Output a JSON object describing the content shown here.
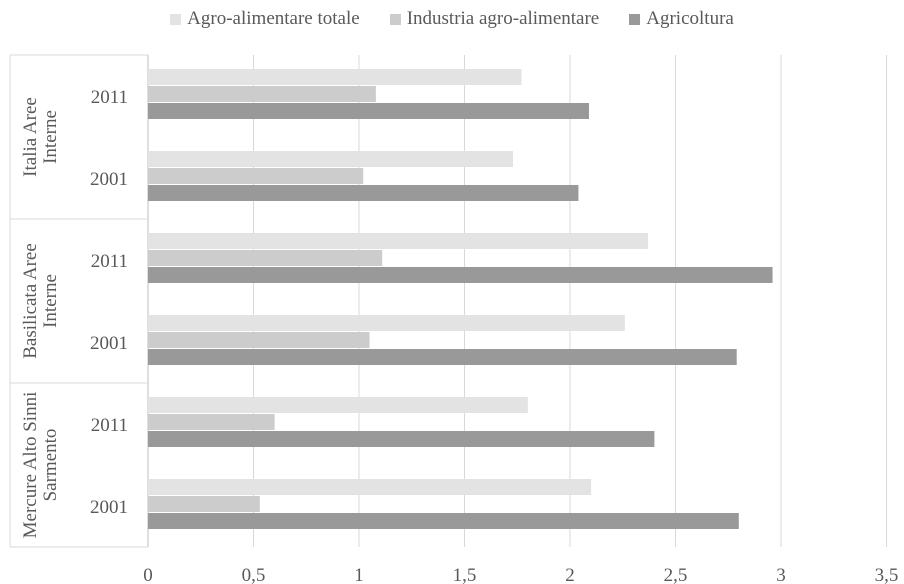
{
  "chart_data": {
    "type": "bar",
    "orientation": "horizontal",
    "title": "",
    "xlabel": "",
    "ylabel": "",
    "xlim": [
      0,
      3.5
    ],
    "xticks": [
      "0",
      "0,5",
      "1",
      "1,5",
      "2",
      "2,5",
      "3",
      "3,5"
    ],
    "grid": true,
    "legend_position": "top",
    "groups": [
      {
        "label": "Italia Aree Interne",
        "categories": [
          "2011",
          "2001"
        ]
      },
      {
        "label": "Basilicata Aree Interne",
        "categories": [
          "2011",
          "2001"
        ]
      },
      {
        "label": "Mercure Alto Sinni Sarmento",
        "categories": [
          "2011",
          "2001"
        ]
      }
    ],
    "series": [
      {
        "name": "Agro-alimentare totale",
        "color": "#e3e3e3",
        "values": [
          1.77,
          1.73,
          2.37,
          2.26,
          1.8,
          2.1
        ]
      },
      {
        "name": "Industria agro-alimentare",
        "color": "#cccccc",
        "values": [
          1.08,
          1.02,
          1.11,
          1.05,
          0.6,
          0.53
        ]
      },
      {
        "name": "Agricoltura",
        "color": "#999999",
        "values": [
          2.09,
          2.04,
          2.96,
          2.79,
          2.4,
          2.8
        ]
      }
    ]
  }
}
